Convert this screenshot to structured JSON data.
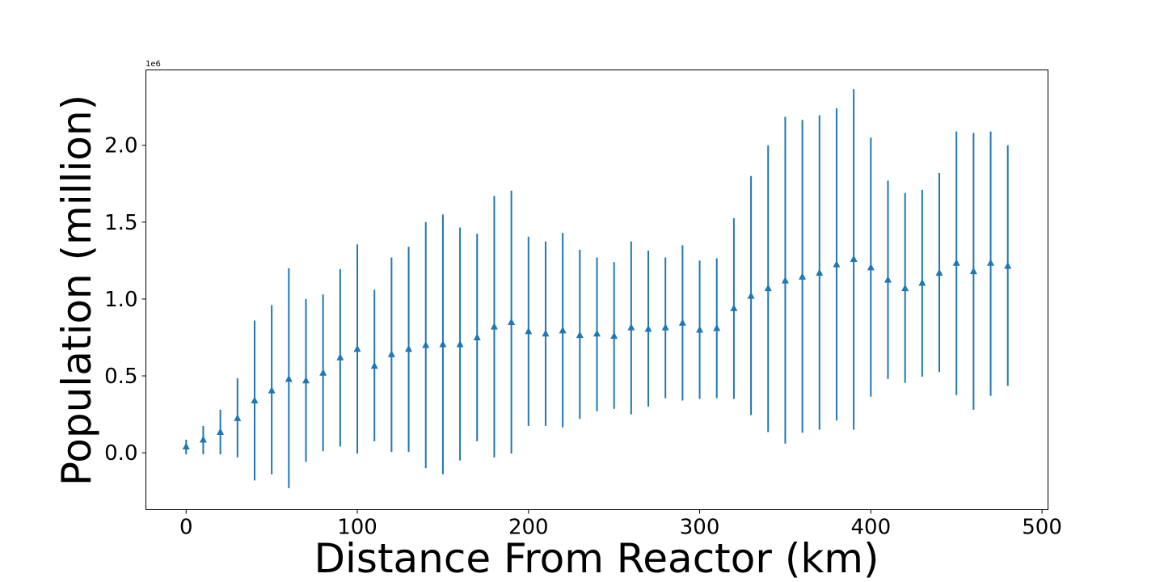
{
  "chart_data": {
    "type": "scatter",
    "marker": "triangle-up",
    "marker_color": "#1f77b4",
    "errorbar_color": "#1f77b4",
    "xlabel": "Distance From Reactor (km)",
    "ylabel": "Population (million)",
    "y_offset_text": "1e6",
    "xlim": [
      -23.5,
      503.5
    ],
    "ylim": [
      -370000,
      2490000
    ],
    "x_ticks": [
      0,
      100,
      200,
      300,
      400,
      500
    ],
    "x_tick_labels": [
      "0",
      "100",
      "200",
      "300",
      "400",
      "500"
    ],
    "y_ticks": [
      0,
      500000,
      1000000,
      1500000,
      2000000
    ],
    "y_tick_labels": [
      "0.0",
      "0.5",
      "1.0",
      "1.5",
      "2.0"
    ],
    "grid": false,
    "series": [
      {
        "x": [
          0,
          10,
          20,
          30,
          40,
          50,
          60,
          70,
          80,
          90,
          100,
          110,
          120,
          130,
          140,
          150,
          160,
          170,
          180,
          190,
          200,
          210,
          220,
          230,
          240,
          250,
          260,
          270,
          280,
          290,
          300,
          310,
          320,
          330,
          340,
          350,
          360,
          370,
          380,
          390,
          400,
          410,
          420,
          430,
          440,
          450,
          460,
          470,
          480
        ],
        "y": [
          40000,
          85000,
          135000,
          225000,
          340000,
          405000,
          480000,
          470000,
          520000,
          620000,
          675000,
          565000,
          640000,
          675000,
          700000,
          705000,
          705000,
          750000,
          820000,
          850000,
          790000,
          775000,
          795000,
          765000,
          775000,
          760000,
          815000,
          805000,
          815000,
          845000,
          800000,
          810000,
          940000,
          1020000,
          1070000,
          1120000,
          1145000,
          1170000,
          1225000,
          1260000,
          1205000,
          1125000,
          1070000,
          1105000,
          1170000,
          1235000,
          1180000,
          1235000,
          1215000
        ],
        "y_low": [
          -10000,
          -10000,
          -10000,
          -30000,
          -180000,
          -140000,
          -230000,
          -60000,
          10000,
          40000,
          -5000,
          75000,
          5000,
          5000,
          -100000,
          -140000,
          -50000,
          75000,
          -30000,
          -5000,
          175000,
          175000,
          165000,
          220000,
          270000,
          285000,
          250000,
          300000,
          355000,
          340000,
          350000,
          355000,
          350000,
          245000,
          135000,
          60000,
          130000,
          150000,
          210000,
          150000,
          365000,
          480000,
          455000,
          495000,
          525000,
          375000,
          280000,
          370000,
          435000
        ],
        "y_high": [
          85000,
          175000,
          280000,
          485000,
          860000,
          960000,
          1200000,
          1000000,
          1030000,
          1195000,
          1355000,
          1060000,
          1270000,
          1340000,
          1500000,
          1550000,
          1465000,
          1425000,
          1670000,
          1705000,
          1405000,
          1375000,
          1430000,
          1320000,
          1270000,
          1240000,
          1375000,
          1315000,
          1270000,
          1350000,
          1250000,
          1265000,
          1525000,
          1800000,
          2000000,
          2185000,
          2165000,
          2195000,
          2240000,
          2365000,
          2050000,
          1770000,
          1690000,
          1710000,
          1820000,
          2090000,
          2080000,
          2090000,
          2000000
        ]
      }
    ]
  }
}
